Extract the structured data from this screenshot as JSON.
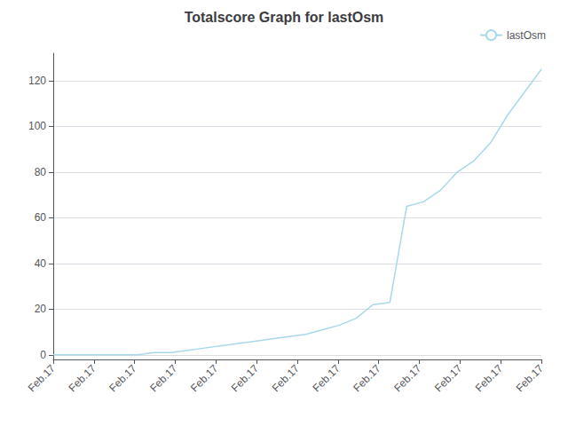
{
  "chart_data": {
    "type": "line",
    "title": "Totalscore Graph for lastOsm",
    "x": [
      0,
      0.41379310344827586,
      0.8275862068965517,
      1.2413793103448276,
      1.6551724137931034,
      2.0689655172413794,
      2.4827586206896552,
      2.896551724137931,
      3.310344827586207,
      3.7241379310344827,
      4.137931034482759,
      4.551724137931035,
      4.9655172413793105,
      5.379310344827586,
      5.793103448275862,
      6.206896551724138,
      6.620689655172414,
      7.0344827586206895,
      7.448275862068965,
      7.862068965517241,
      8.275862068965518,
      8.689655172413794,
      9.10344827586207,
      9.517241379310345,
      9.931034482758621,
      10.344827586206897,
      10.758620689655173,
      11.172413793103448,
      11.586206896551724,
      12
    ],
    "series": [
      {
        "name": "lastOsm",
        "color": "#a8d8ea",
        "values": [
          0,
          0,
          0,
          0,
          0,
          0,
          1,
          1,
          2,
          3,
          4,
          5,
          6,
          7,
          8,
          9,
          11,
          13,
          16,
          22,
          23,
          65,
          67,
          72,
          80,
          85,
          93,
          105,
          115,
          125
        ]
      }
    ],
    "xlim": [
      0,
      12
    ],
    "xticks": [
      {
        "value": 0,
        "label": "Feb.17"
      },
      {
        "value": 1,
        "label": "Feb.17"
      },
      {
        "value": 2,
        "label": "Feb.17"
      },
      {
        "value": 3,
        "label": "Feb.17"
      },
      {
        "value": 4,
        "label": "Feb.17"
      },
      {
        "value": 5,
        "label": "Feb.17"
      },
      {
        "value": 6,
        "label": "Feb.17"
      },
      {
        "value": 7,
        "label": "Feb.17"
      },
      {
        "value": 8,
        "label": "Feb.17"
      },
      {
        "value": 9,
        "label": "Feb.17"
      },
      {
        "value": 10,
        "label": "Feb.17"
      },
      {
        "value": 11,
        "label": "Feb.17"
      },
      {
        "value": 12,
        "label": "Feb.17"
      }
    ],
    "ylim": [
      -2,
      132
    ],
    "yticks": [
      0,
      20,
      40,
      60,
      80,
      100,
      120
    ],
    "grid": true,
    "legend": "upper right"
  }
}
